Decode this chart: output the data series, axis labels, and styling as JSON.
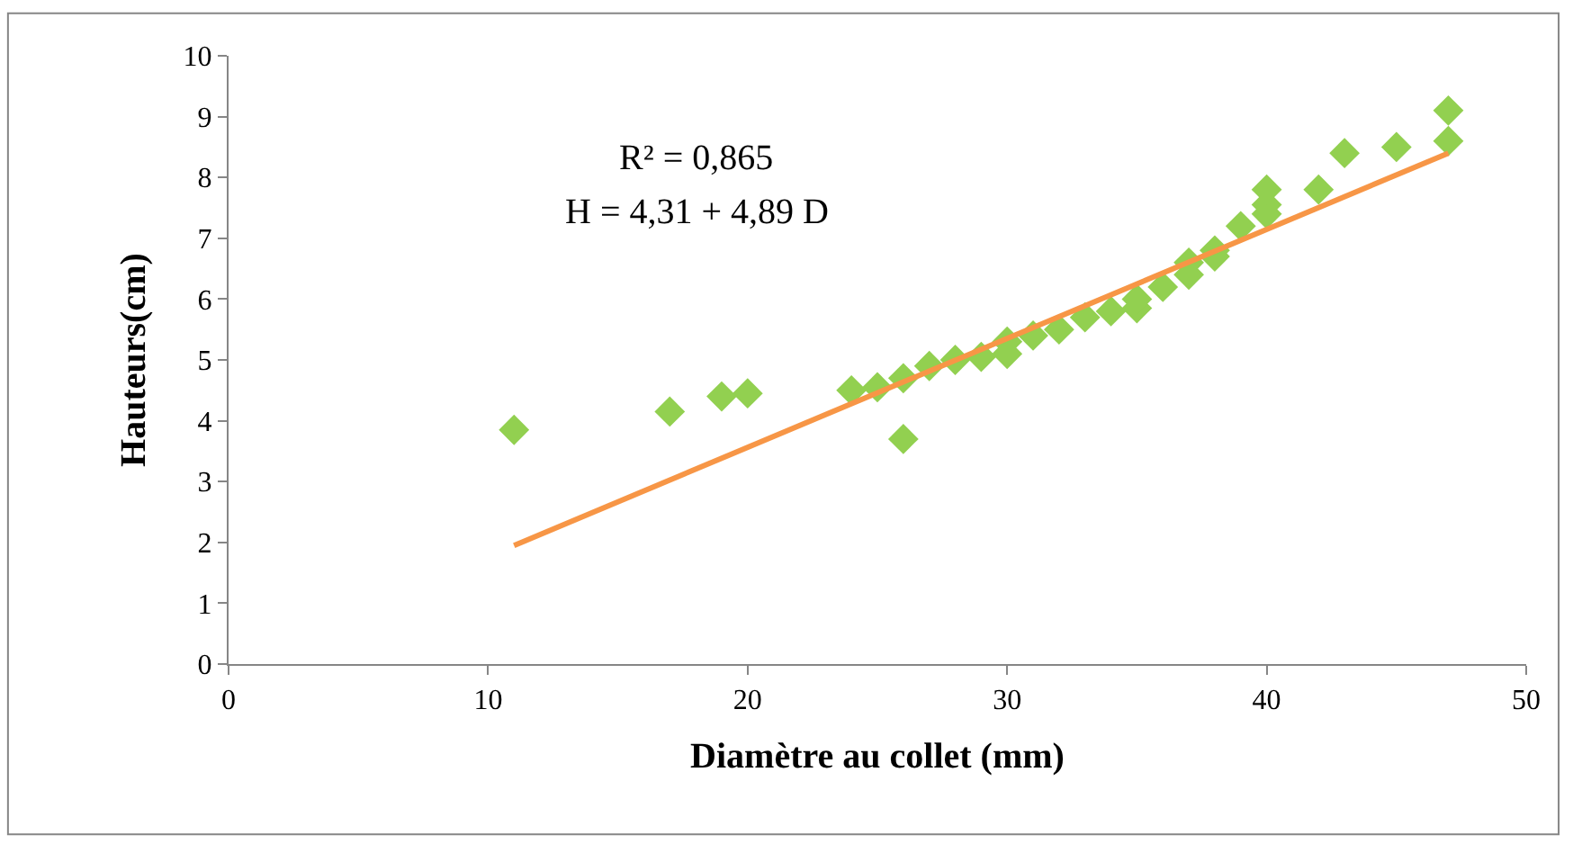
{
  "chart_data": {
    "type": "scatter",
    "xlabel": "Diamètre au collet (mm)",
    "ylabel": "Hauteurs(cm)",
    "annotations": [
      "R² = 0,865",
      "H = 4,31 + 4,89 D"
    ],
    "xlim": [
      0,
      50
    ],
    "xticks": [
      0,
      10,
      20,
      30,
      40,
      50
    ],
    "ylim": [
      0,
      10
    ],
    "yticks": [
      0,
      1,
      2,
      3,
      4,
      5,
      6,
      7,
      8,
      9,
      10
    ],
    "series": [
      {
        "marker": "diamond",
        "color": "#92d050",
        "x": [
          11,
          17,
          19,
          20,
          24,
          25,
          26,
          26,
          27,
          28,
          29,
          30,
          30,
          31,
          32,
          33,
          34,
          35,
          35,
          36,
          37,
          37,
          38,
          38,
          39,
          40,
          40,
          40,
          42,
          43,
          45,
          47,
          47
        ],
        "values": [
          3.85,
          4.15,
          4.4,
          4.45,
          4.5,
          4.55,
          4.7,
          3.7,
          4.9,
          5.0,
          5.05,
          5.1,
          5.3,
          5.4,
          5.5,
          5.7,
          5.8,
          5.85,
          6.0,
          6.2,
          6.4,
          6.6,
          6.7,
          6.8,
          7.2,
          7.4,
          7.55,
          7.8,
          7.8,
          8.4,
          8.5,
          8.6,
          9.1
        ]
      },
      {
        "type": "line",
        "marker": "none",
        "color": "#f79646",
        "x": [
          11,
          47
        ],
        "values": [
          1.95,
          8.4
        ]
      }
    ]
  }
}
